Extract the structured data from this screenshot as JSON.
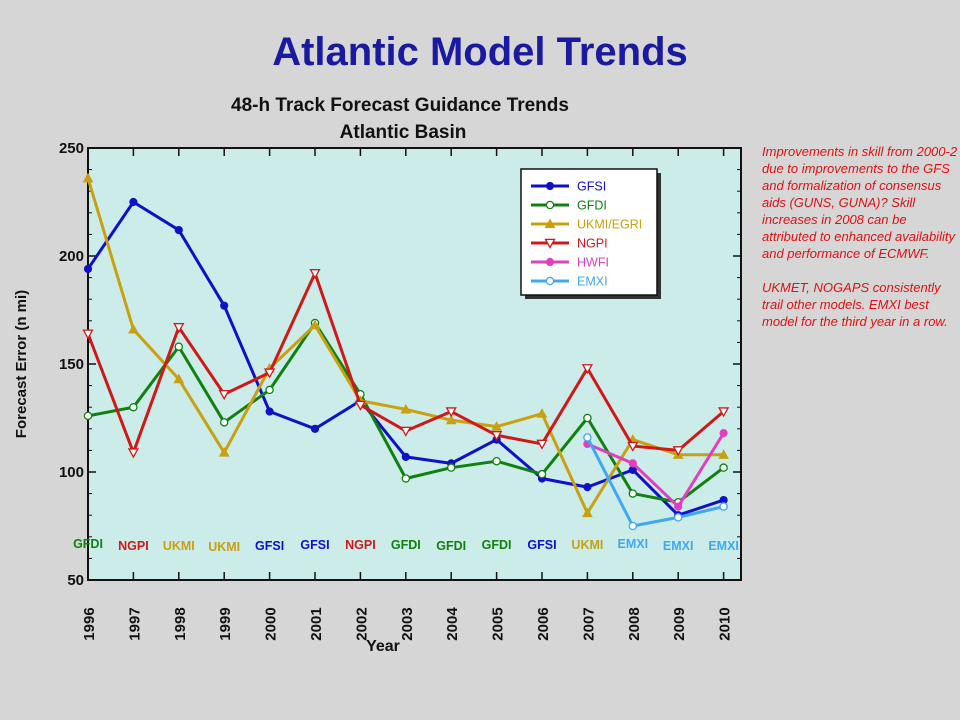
{
  "slide": {
    "title": "Atlantic Model Trends"
  },
  "note": {
    "paragraph1": "Improvements in skill from 2000-2 due to improvements to the GFS and formalization of consensus aids (GUNS, GUNA)?  Skill increases in 2008 can be attributed to enhanced availability and performance of ECMWF.",
    "paragraph2": "UKMET, NOGAPS consistently trail other models. EMXI best model for the third year in a row."
  },
  "colors": {
    "plot_background": "#ccecea",
    "GFSI": "#1010c8",
    "GFDI": "#108010",
    "UKMI/EGRI": "#c8a010",
    "NGPI": "#d01818",
    "HWFI": "#e040c0",
    "EMXI": "#40a8f0"
  },
  "chart_data": {
    "type": "line",
    "title": "48-h Track Forecast Guidance Trends",
    "subtitle": "Atlantic Basin",
    "xlabel": "Year",
    "ylabel": "Forecast Error (n mi)",
    "x": [
      "1996",
      "1997",
      "1998",
      "1999",
      "2000",
      "2001",
      "2002",
      "2003",
      "2004",
      "2005",
      "2006",
      "2007",
      "2008",
      "2009",
      "2010"
    ],
    "ylim": [
      50,
      250
    ],
    "yticks": [
      50,
      100,
      150,
      200,
      250
    ],
    "grid": false,
    "legend_position": "top-right",
    "series": [
      {
        "name": "GFSI",
        "marker": "filled-circle",
        "values": [
          194,
          225,
          212,
          177,
          128,
          120,
          133,
          107,
          104,
          115,
          97,
          93,
          101,
          80,
          87
        ]
      },
      {
        "name": "GFDI",
        "marker": "open-circle",
        "values": [
          126,
          130,
          158,
          123,
          138,
          169,
          136,
          97,
          102,
          105,
          99,
          125,
          90,
          86,
          102
        ]
      },
      {
        "name": "UKMI/EGRI",
        "marker": "filled-triangle-up",
        "values": [
          236,
          166,
          143,
          109,
          148,
          168,
          133,
          129,
          124,
          121,
          127,
          81,
          115,
          108,
          108
        ]
      },
      {
        "name": "NGPI",
        "marker": "open-triangle-down",
        "values": [
          164,
          109,
          167,
          136,
          146,
          192,
          131,
          119,
          128,
          117,
          113,
          148,
          112,
          110,
          128
        ]
      },
      {
        "name": "HWFI",
        "marker": "filled-circle",
        "values": [
          null,
          null,
          null,
          null,
          null,
          null,
          null,
          null,
          null,
          null,
          null,
          113,
          104,
          84,
          118
        ]
      },
      {
        "name": "EMXI",
        "marker": "open-circle",
        "values": [
          null,
          null,
          null,
          null,
          null,
          null,
          null,
          null,
          null,
          null,
          null,
          116,
          75,
          79,
          84
        ]
      }
    ],
    "annotations": [
      {
        "text": "GFDI",
        "year": "1996",
        "series": "GFDI"
      },
      {
        "text": "NGPI",
        "year": "1997",
        "series": "NGPI"
      },
      {
        "text": "UKMI",
        "year": "1998",
        "series": "UKMI/EGRI"
      },
      {
        "text": "UKMI",
        "year": "1999",
        "series": "UKMI/EGRI"
      },
      {
        "text": "GFSI",
        "year": "2000",
        "series": "GFSI"
      },
      {
        "text": "GFSI",
        "year": "2001",
        "series": "GFSI"
      },
      {
        "text": "NGPI",
        "year": "2002",
        "series": "NGPI"
      },
      {
        "text": "GFDI",
        "year": "2003",
        "series": "GFDI"
      },
      {
        "text": "GFDI",
        "year": "2004",
        "series": "GFDI"
      },
      {
        "text": "GFDI",
        "year": "2005",
        "series": "GFDI"
      },
      {
        "text": "GFSI",
        "year": "2006",
        "series": "GFSI"
      },
      {
        "text": "UKMI",
        "year": "2007",
        "series": "UKMI/EGRI"
      },
      {
        "text": "EMXI",
        "year": "2008",
        "series": "EMXI"
      },
      {
        "text": "EMXI",
        "year": "2009",
        "series": "EMXI"
      },
      {
        "text": "EMXI",
        "year": "2010",
        "series": "EMXI"
      }
    ]
  }
}
